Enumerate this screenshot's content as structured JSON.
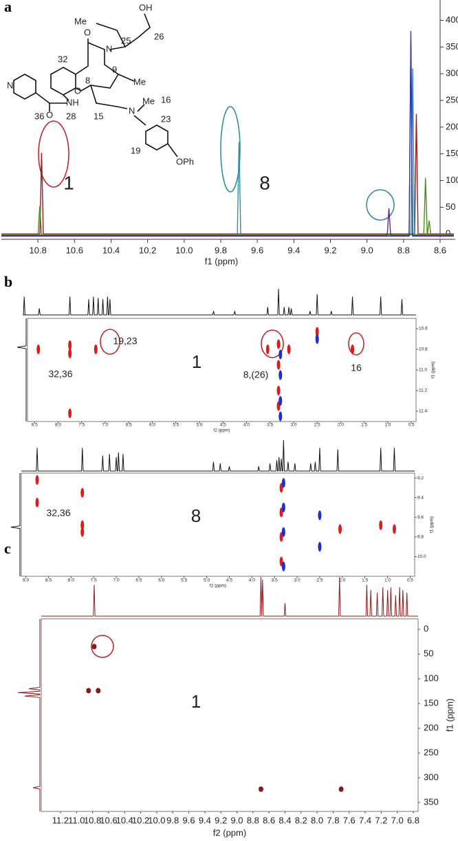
{
  "panel_labels": [
    "a",
    "b",
    "c"
  ],
  "structure_labels": [
    "O",
    "Me",
    "OH",
    "25",
    "26",
    "N",
    "9",
    "Me",
    "8",
    "O",
    "32",
    "N",
    "NH",
    "28",
    "36",
    "O",
    "15",
    "N",
    "Me",
    "16",
    "23",
    "19",
    "OPh"
  ],
  "chart_data": [
    {
      "type": "spectrum",
      "xlabel": "f1 (ppm)",
      "xlim": [
        11.0,
        8.6
      ],
      "xticks": [
        10.8,
        10.6,
        10.4,
        10.2,
        {
          "value": 10.0,
          "label": "10.0"
        },
        9.8,
        9.6,
        9.4,
        9.2,
        {
          "value": 9.0,
          "label": "9.0"
        },
        8.8,
        8.6
      ],
      "ylim": [
        -10,
        438
      ],
      "yticks": [
        0,
        50,
        100,
        150,
        200,
        250,
        300,
        350,
        400
      ],
      "series": [
        {
          "color": "#9b1c1c",
          "x": [
            10.78,
            8.73
          ],
          "values": [
            152,
            225
          ]
        },
        {
          "color": "#4a8c1c",
          "x": [
            10.79,
            8.68,
            8.66
          ],
          "values": [
            52,
            105,
            25
          ]
        },
        {
          "color": "#2e8fa0",
          "x": [
            9.7,
            8.75
          ],
          "values": [
            172,
            310
          ]
        },
        {
          "color": "#5b2a8c",
          "x": [
            8.88,
            8.76
          ],
          "values": [
            48,
            380
          ]
        },
        {
          "color": "#2838b0",
          "x": [
            8.76
          ],
          "values": [
            360
          ]
        }
      ],
      "annotations": [
        {
          "text": "1",
          "color": "#c0262c"
        },
        {
          "text": "8",
          "color": "#2e8fa0"
        }
      ]
    },
    {
      "type": "2d",
      "xlabel": "f2 (ppm)",
      "ylabel": "f1 (ppm)",
      "xlim": [
        8.65,
        0.4
      ],
      "xticks": [
        8.5,
        {
          "value": 8.0,
          "label": "8.0"
        },
        7.5,
        {
          "value": 7.0,
          "label": "7.0"
        },
        6.5,
        {
          "value": 6.0,
          "label": "6.0"
        },
        5.5,
        {
          "value": 5.0,
          "label": "5.0"
        },
        4.5,
        {
          "value": 4.0,
          "label": "4.0"
        },
        3.5,
        {
          "value": 3.0,
          "label": "3.0"
        },
        2.5,
        {
          "value": 2.0,
          "label": "2.0"
        },
        1.5,
        {
          "value": 1.0,
          "label": "1.0"
        },
        0.5
      ],
      "ylim": [
        10.5,
        11.5
      ],
      "yticks": [
        10.6,
        10.8,
        {
          "value": 11.0,
          "label": "11.0"
        },
        11.2,
        11.4
      ],
      "projection_x": {
        "x": [
          8.72,
          8.4,
          7.75,
          7.35,
          7.25,
          7.15,
          7.05,
          6.95,
          6.9,
          4.7,
          4.25,
          3.55,
          3.32,
          3.2,
          3.1,
          3.05,
          2.65,
          2.5,
          2.2,
          1.75,
          1.15,
          0.7
        ],
        "values": [
          70,
          25,
          70,
          60,
          70,
          65,
          60,
          70,
          60,
          15,
          15,
          30,
          100,
          30,
          30,
          25,
          15,
          80,
          15,
          70,
          70,
          60
        ]
      },
      "projection_y": {
        "y": [
          10.78
        ],
        "values": [
          50
        ]
      },
      "peaks": [
        {
          "color": "#e01b1b",
          "x": [
            8.42,
            7.75,
            7.75,
            7.2,
            3.55,
            3.32,
            3.32,
            3.32,
            3.32,
            3.1,
            2.5,
            1.75,
            7.75
          ],
          "y": [
            10.8,
            10.76,
            10.84,
            10.8,
            10.8,
            10.75,
            10.95,
            11.2,
            11.35,
            10.8,
            10.63,
            10.8,
            11.42
          ]
        },
        {
          "color": "#1a2fd6",
          "x": [
            3.28,
            3.28,
            3.28,
            3.28,
            2.5
          ],
          "y": [
            10.85,
            11.05,
            11.3,
            11.45,
            10.7
          ]
        }
      ],
      "annotations": [
        {
          "text": "19,23",
          "color": "#222"
        },
        {
          "text": "32,36",
          "color": "#222"
        },
        {
          "text": "1",
          "color": "#c0262c"
        },
        {
          "text": "8,(26)",
          "color": "#222"
        },
        {
          "text": "16",
          "color": "#222"
        }
      ]
    },
    {
      "type": "2d",
      "xlabel": "f2 (ppm)",
      "ylabel": "f1 (ppm)",
      "xlim": [
        9.1,
        0.4
      ],
      "xticks": [
        {
          "value": 9.0,
          "label": "9.0"
        },
        8.5,
        {
          "value": 8.0,
          "label": "8.0"
        },
        7.5,
        {
          "value": 7.0,
          "label": "7.0"
        },
        6.5,
        {
          "value": 6.0,
          "label": "6.0"
        },
        5.5,
        {
          "value": 5.0,
          "label": "5.0"
        },
        4.5,
        {
          "value": 4.0,
          "label": "4.0"
        },
        3.5,
        {
          "value": 3.0,
          "label": "3.0"
        },
        2.5,
        {
          "value": 2.0,
          "label": "2.0"
        },
        1.5,
        {
          "value": 1.0,
          "label": "1.0"
        },
        0.5
      ],
      "ylim": [
        9.15,
        10.2
      ],
      "yticks": [
        9.2,
        9.4,
        9.6,
        9.8,
        {
          "value": 10.0,
          "label": "10.0"
        }
      ],
      "projection_x": {
        "x": [
          8.75,
          7.75,
          7.3,
          7.15,
          7.0,
          6.95,
          6.85,
          4.85,
          4.7,
          4.5,
          3.85,
          3.6,
          3.45,
          3.4,
          3.35,
          3.3,
          3.2,
          3.05,
          2.7,
          2.6,
          2.5,
          2.1,
          1.15,
          0.85
        ],
        "values": [
          75,
          75,
          50,
          55,
          45,
          60,
          55,
          30,
          25,
          15,
          15,
          25,
          35,
          45,
          40,
          100,
          30,
          25,
          25,
          30,
          75,
          70,
          75,
          75
        ]
      },
      "projection_y": {
        "y": [
          9.7
        ],
        "values": [
          55
        ]
      },
      "peaks": [
        {
          "color": "#e01b1b",
          "x": [
            8.75,
            8.75,
            7.75,
            7.75,
            7.75,
            3.35,
            3.35,
            3.35,
            3.35,
            2.05,
            1.15,
            0.85
          ],
          "y": [
            9.22,
            9.45,
            9.35,
            9.68,
            9.75,
            9.3,
            9.55,
            9.8,
            10.05,
            9.72,
            9.68,
            9.72
          ]
        },
        {
          "color": "#1a2fd6",
          "x": [
            3.3,
            3.3,
            3.3,
            3.3,
            2.5,
            2.5
          ],
          "y": [
            9.25,
            9.5,
            9.75,
            10.1,
            9.58,
            9.9
          ]
        }
      ],
      "annotations": [
        {
          "text": "32,36",
          "color": "#222"
        },
        {
          "text": "8",
          "color": "#2e8fa0"
        }
      ]
    },
    {
      "type": "2d",
      "xlabel": "f2 (ppm)",
      "ylabel": "f1 (ppm)",
      "xlim": [
        11.44,
        6.74
      ],
      "xticks": [
        11.2,
        {
          "value": 11.0,
          "label": "11.0"
        },
        10.8,
        10.6,
        10.4,
        10.2,
        {
          "value": 10.0,
          "label": "10.0"
        },
        9.8,
        9.6,
        9.4,
        9.2,
        {
          "value": 9.0,
          "label": "9.0"
        },
        8.8,
        8.6,
        8.4,
        8.2,
        {
          "value": 8.0,
          "label": "8.0"
        },
        7.8,
        7.6,
        7.4,
        7.2,
        {
          "value": 7.0,
          "label": "7.0"
        },
        6.8
      ],
      "ylim": [
        -21,
        368
      ],
      "yticks": [
        0,
        50,
        100,
        150,
        200,
        250,
        300,
        350
      ],
      "projection_x": {
        "x": [
          10.78,
          8.7,
          8.68,
          8.4,
          7.72,
          7.38,
          7.33,
          7.25,
          7.18,
          7.12,
          7.08,
          7.02,
          6.97,
          6.93,
          6.88
        ],
        "values": [
          60,
          75,
          70,
          25,
          75,
          60,
          50,
          45,
          55,
          50,
          55,
          40,
          55,
          50,
          45
        ]
      },
      "projection_y": {
        "y": [
          120,
          128,
          135,
          320
        ],
        "values": [
          40,
          80,
          55,
          25
        ]
      },
      "peaks": [
        {
          "color": "#8b1a1a",
          "x": [
            10.78,
            10.85,
            10.73,
            8.7,
            7.7
          ],
          "y": [
            35,
            124,
            124,
            323,
            323
          ]
        }
      ],
      "annotations": [
        {
          "text": "1",
          "color": "#c0262c"
        }
      ]
    }
  ]
}
